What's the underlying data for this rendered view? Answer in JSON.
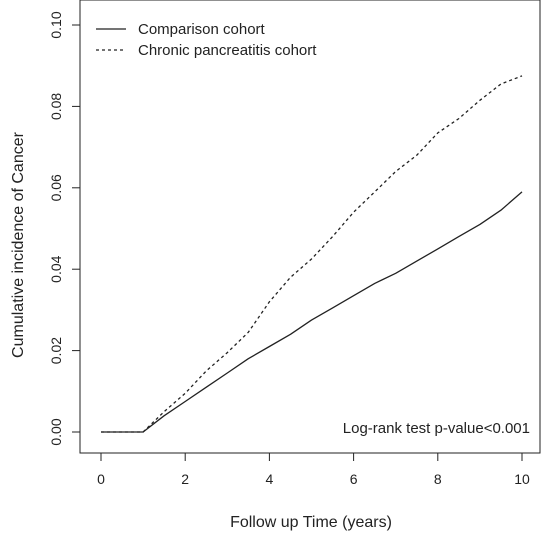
{
  "chart_data": {
    "type": "line",
    "title": "",
    "xlabel": "Follow up Time (years)",
    "ylabel": "Cumulative incidence of Cancer",
    "xlim": [
      0,
      10
    ],
    "ylim": [
      0,
      0.1
    ],
    "x_ticks": [
      "0",
      "2",
      "4",
      "6",
      "8",
      "10"
    ],
    "y_ticks": [
      "0.00",
      "0.02",
      "0.04",
      "0.06",
      "0.08",
      "0.10"
    ],
    "grid": false,
    "legend_position": "top-left",
    "annotation": "Log-rank test p-value<0.001",
    "series": [
      {
        "name": "Comparison cohort",
        "line_style": "solid",
        "color": "#222222",
        "x": [
          0,
          1,
          1.5,
          2,
          2.5,
          3,
          3.5,
          4,
          4.5,
          5,
          5.5,
          6,
          6.5,
          7,
          7.5,
          8,
          8.5,
          9,
          9.5,
          10
        ],
        "y": [
          0,
          0,
          0.004,
          0.0075,
          0.011,
          0.0145,
          0.018,
          0.021,
          0.024,
          0.0275,
          0.0305,
          0.0335,
          0.0365,
          0.039,
          0.042,
          0.045,
          0.048,
          0.051,
          0.0545,
          0.059
        ]
      },
      {
        "name": "Chronic pancreatitis cohort",
        "line_style": "dashed",
        "color": "#222222",
        "x": [
          0,
          1,
          1.5,
          2,
          2.5,
          3,
          3.5,
          4,
          4.5,
          5,
          5.5,
          6,
          6.5,
          7,
          7.5,
          8,
          8.5,
          9,
          9.5,
          10
        ],
        "y": [
          0,
          0,
          0.005,
          0.0095,
          0.015,
          0.0195,
          0.0245,
          0.032,
          0.038,
          0.0425,
          0.048,
          0.054,
          0.059,
          0.064,
          0.068,
          0.0735,
          0.077,
          0.0815,
          0.0855,
          0.0875
        ]
      }
    ]
  }
}
